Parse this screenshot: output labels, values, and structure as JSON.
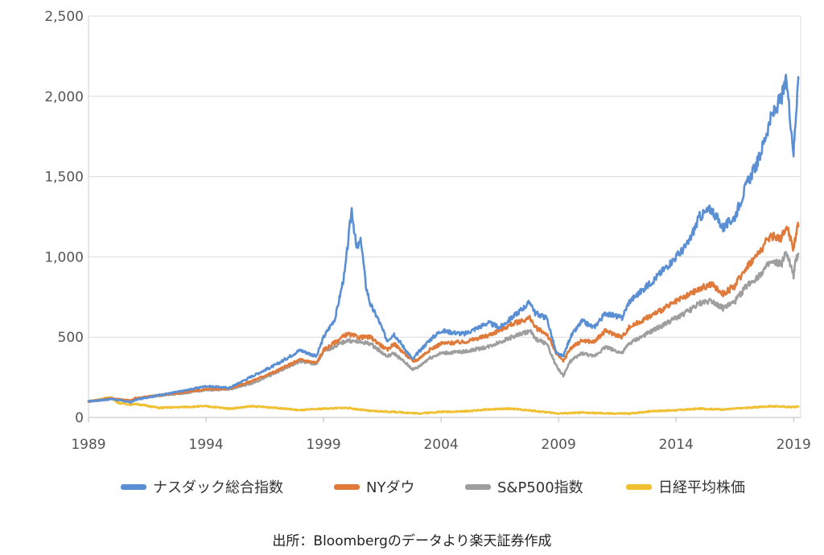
{
  "chart_data": {
    "type": "line",
    "title": "",
    "xlabel": "",
    "ylabel": "",
    "xlim": [
      1989,
      2019.3
    ],
    "ylim": [
      0,
      2500
    ],
    "yticks": [
      0,
      500,
      1000,
      1500,
      2000,
      2500
    ],
    "ytick_labels": [
      "0",
      "500",
      "1,000",
      "1,500",
      "2,000",
      "2,500"
    ],
    "xticks": [
      1989,
      1994,
      1999,
      2004,
      2009,
      2014,
      2019
    ],
    "xtick_labels": [
      "1989",
      "1994",
      "1999",
      "2004",
      "2009",
      "2014",
      "2019"
    ],
    "grid": "horizontal",
    "legend_position": "bottom",
    "series": [
      {
        "name": "ナスダック総合指数",
        "color": "#5b8fd4",
        "points": [
          [
            1989,
            100
          ],
          [
            1990,
            115
          ],
          [
            1990.8,
            95
          ],
          [
            1991,
            110
          ],
          [
            1992,
            140
          ],
          [
            1993,
            165
          ],
          [
            1994,
            195
          ],
          [
            1995,
            185
          ],
          [
            1996,
            260
          ],
          [
            1997,
            330
          ],
          [
            1998,
            420
          ],
          [
            1998.7,
            380
          ],
          [
            1999,
            500
          ],
          [
            1999.5,
            620
          ],
          [
            1999.9,
            900
          ],
          [
            2000.2,
            1300
          ],
          [
            2000.4,
            1050
          ],
          [
            2000.6,
            1100
          ],
          [
            2000.8,
            820
          ],
          [
            2001,
            700
          ],
          [
            2001.3,
            620
          ],
          [
            2001.7,
            480
          ],
          [
            2002,
            520
          ],
          [
            2002.5,
            420
          ],
          [
            2002.8,
            360
          ],
          [
            2003,
            400
          ],
          [
            2003.5,
            480
          ],
          [
            2004,
            540
          ],
          [
            2005,
            520
          ],
          [
            2006,
            590
          ],
          [
            2006.5,
            560
          ],
          [
            2007,
            620
          ],
          [
            2007.8,
            720
          ],
          [
            2008,
            650
          ],
          [
            2008.5,
            620
          ],
          [
            2008.9,
            400
          ],
          [
            2009.2,
            380
          ],
          [
            2009.5,
            500
          ],
          [
            2010,
            600
          ],
          [
            2010.5,
            560
          ],
          [
            2011,
            650
          ],
          [
            2011.7,
            620
          ],
          [
            2012,
            720
          ],
          [
            2013,
            850
          ],
          [
            2014,
            1000
          ],
          [
            2014.5,
            1080
          ],
          [
            2015,
            1250
          ],
          [
            2015.5,
            1300
          ],
          [
            2016,
            1180
          ],
          [
            2016.5,
            1250
          ],
          [
            2017,
            1450
          ],
          [
            2017.5,
            1600
          ],
          [
            2018,
            1850
          ],
          [
            2018.5,
            2000
          ],
          [
            2018.7,
            2100
          ],
          [
            2019,
            1650
          ],
          [
            2019.1,
            1900
          ],
          [
            2019.2,
            2120
          ]
        ]
      },
      {
        "name": "NYダウ",
        "color": "#e07a3a",
        "points": [
          [
            1989,
            100
          ],
          [
            1990,
            120
          ],
          [
            1990.8,
            105
          ],
          [
            1991,
            120
          ],
          [
            1992,
            140
          ],
          [
            1993,
            155
          ],
          [
            1994,
            175
          ],
          [
            1995,
            180
          ],
          [
            1996,
            230
          ],
          [
            1997,
            290
          ],
          [
            1998,
            360
          ],
          [
            1998.7,
            340
          ],
          [
            1999,
            420
          ],
          [
            2000,
            520
          ],
          [
            2000.5,
            500
          ],
          [
            2001,
            500
          ],
          [
            2001.7,
            420
          ],
          [
            2002,
            460
          ],
          [
            2002.8,
            350
          ],
          [
            2003,
            360
          ],
          [
            2003.5,
            420
          ],
          [
            2004,
            460
          ],
          [
            2005,
            470
          ],
          [
            2006,
            510
          ],
          [
            2007,
            580
          ],
          [
            2007.8,
            620
          ],
          [
            2008,
            560
          ],
          [
            2008.5,
            520
          ],
          [
            2008.9,
            400
          ],
          [
            2009.2,
            350
          ],
          [
            2009.5,
            430
          ],
          [
            2010,
            480
          ],
          [
            2010.5,
            470
          ],
          [
            2011,
            540
          ],
          [
            2011.7,
            500
          ],
          [
            2012,
            560
          ],
          [
            2013,
            640
          ],
          [
            2014,
            720
          ],
          [
            2014.5,
            760
          ],
          [
            2015,
            800
          ],
          [
            2015.5,
            830
          ],
          [
            2016,
            770
          ],
          [
            2016.5,
            820
          ],
          [
            2017,
            940
          ],
          [
            2017.5,
            1020
          ],
          [
            2018,
            1130
          ],
          [
            2018.5,
            1120
          ],
          [
            2018.7,
            1200
          ],
          [
            2019,
            1050
          ],
          [
            2019.1,
            1150
          ],
          [
            2019.2,
            1190
          ]
        ]
      },
      {
        "name": "S&P500指数",
        "color": "#9e9e9e",
        "points": [
          [
            1989,
            100
          ],
          [
            1990,
            115
          ],
          [
            1990.8,
            100
          ],
          [
            1991,
            115
          ],
          [
            1992,
            135
          ],
          [
            1993,
            150
          ],
          [
            1994,
            170
          ],
          [
            1995,
            175
          ],
          [
            1996,
            215
          ],
          [
            1997,
            280
          ],
          [
            1998,
            350
          ],
          [
            1998.7,
            330
          ],
          [
            1999,
            410
          ],
          [
            2000,
            480
          ],
          [
            2000.5,
            470
          ],
          [
            2001,
            460
          ],
          [
            2001.7,
            380
          ],
          [
            2002,
            400
          ],
          [
            2002.8,
            300
          ],
          [
            2003,
            310
          ],
          [
            2003.5,
            370
          ],
          [
            2004,
            400
          ],
          [
            2005,
            410
          ],
          [
            2006,
            440
          ],
          [
            2007,
            500
          ],
          [
            2007.8,
            540
          ],
          [
            2008,
            490
          ],
          [
            2008.5,
            460
          ],
          [
            2008.9,
            320
          ],
          [
            2009.2,
            260
          ],
          [
            2009.5,
            350
          ],
          [
            2010,
            400
          ],
          [
            2010.5,
            380
          ],
          [
            2011,
            440
          ],
          [
            2011.7,
            400
          ],
          [
            2012,
            460
          ],
          [
            2013,
            540
          ],
          [
            2014,
            620
          ],
          [
            2014.5,
            660
          ],
          [
            2015,
            710
          ],
          [
            2015.5,
            730
          ],
          [
            2016,
            680
          ],
          [
            2016.5,
            720
          ],
          [
            2017,
            820
          ],
          [
            2017.5,
            880
          ],
          [
            2018,
            960
          ],
          [
            2018.5,
            960
          ],
          [
            2018.7,
            1030
          ],
          [
            2019,
            880
          ],
          [
            2019.1,
            980
          ],
          [
            2019.2,
            1020
          ]
        ]
      },
      {
        "name": "日経平均株価",
        "color": "#f0c030",
        "points": [
          [
            1989,
            100
          ],
          [
            1989.9,
            125
          ],
          [
            1990.3,
            90
          ],
          [
            1990.8,
            80
          ],
          [
            1991,
            85
          ],
          [
            1992,
            60
          ],
          [
            1993,
            65
          ],
          [
            1994,
            70
          ],
          [
            1995,
            55
          ],
          [
            1996,
            70
          ],
          [
            1997,
            60
          ],
          [
            1998,
            45
          ],
          [
            1999,
            55
          ],
          [
            2000,
            60
          ],
          [
            2001,
            40
          ],
          [
            2002,
            35
          ],
          [
            2003,
            25
          ],
          [
            2004,
            35
          ],
          [
            2005,
            38
          ],
          [
            2006,
            50
          ],
          [
            2007,
            55
          ],
          [
            2008,
            40
          ],
          [
            2009,
            25
          ],
          [
            2010,
            30
          ],
          [
            2011,
            25
          ],
          [
            2012,
            24
          ],
          [
            2013,
            40
          ],
          [
            2014,
            45
          ],
          [
            2015,
            55
          ],
          [
            2016,
            50
          ],
          [
            2017,
            60
          ],
          [
            2018,
            70
          ],
          [
            2019,
            65
          ],
          [
            2019.2,
            68
          ]
        ]
      }
    ]
  },
  "source_text": "出所：Bloombergのデータより楽天証券作成"
}
